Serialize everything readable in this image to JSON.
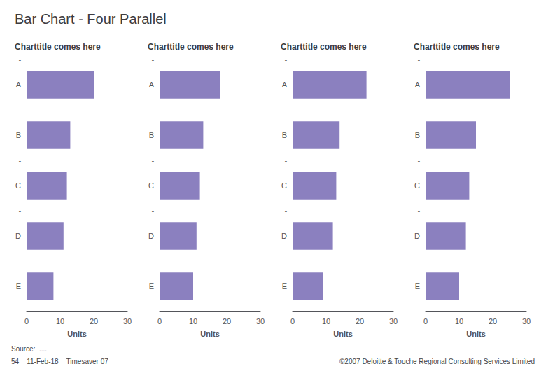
{
  "title": "Bar Chart - Four Parallel",
  "annotations": [
    "Source:  ....",
    "54    11-Feb-18    Timesaver 07",
    "©2007 Deloitte & Touche Regional Consulting Services Limited"
  ],
  "chart_data": [
    {
      "type": "bar",
      "orientation": "horizontal",
      "title": "Charttitle comes here",
      "categories": [
        "A",
        "B",
        "C",
        "D",
        "E"
      ],
      "values": [
        20,
        13,
        12,
        11,
        8
      ],
      "color": "#8B80BF",
      "xlabel": "Units",
      "xlim": [
        0,
        30
      ],
      "xticks": [
        0,
        10,
        20,
        30
      ],
      "grid": false,
      "annotations": [
        "-",
        "-",
        "-",
        "-",
        "-"
      ]
    },
    {
      "type": "bar",
      "orientation": "horizontal",
      "title": "Charttitle comes here",
      "categories": [
        "A",
        "B",
        "C",
        "D",
        "E"
      ],
      "values": [
        18,
        13,
        12,
        11,
        10
      ],
      "color": "#8B80BF",
      "xlabel": "Units",
      "xlim": [
        0,
        30
      ],
      "xticks": [
        0,
        10,
        20,
        30
      ],
      "grid": false,
      "annotations": [
        "-",
        "-",
        "-",
        "-",
        "-"
      ]
    },
    {
      "type": "bar",
      "orientation": "horizontal",
      "title": "Charttitle comes here",
      "categories": [
        "A",
        "B",
        "C",
        "D",
        "E"
      ],
      "values": [
        22,
        14,
        13,
        12,
        9
      ],
      "color": "#8B80BF",
      "xlabel": "Units",
      "xlim": [
        0,
        30
      ],
      "xticks": [
        0,
        10,
        20,
        30
      ],
      "grid": false,
      "annotations": [
        "-",
        "-",
        "-",
        "-",
        "-"
      ]
    },
    {
      "type": "bar",
      "orientation": "horizontal",
      "title": "Charttitle comes here",
      "categories": [
        "A",
        "B",
        "C",
        "D",
        "E"
      ],
      "values": [
        25,
        15,
        13,
        12,
        10
      ],
      "color": "#8B80BF",
      "xlabel": "Units",
      "xlim": [
        0,
        30
      ],
      "xticks": [
        0,
        10,
        20,
        30
      ],
      "grid": false,
      "annotations": [
        "-",
        "-",
        "-",
        "-",
        "-"
      ]
    }
  ]
}
